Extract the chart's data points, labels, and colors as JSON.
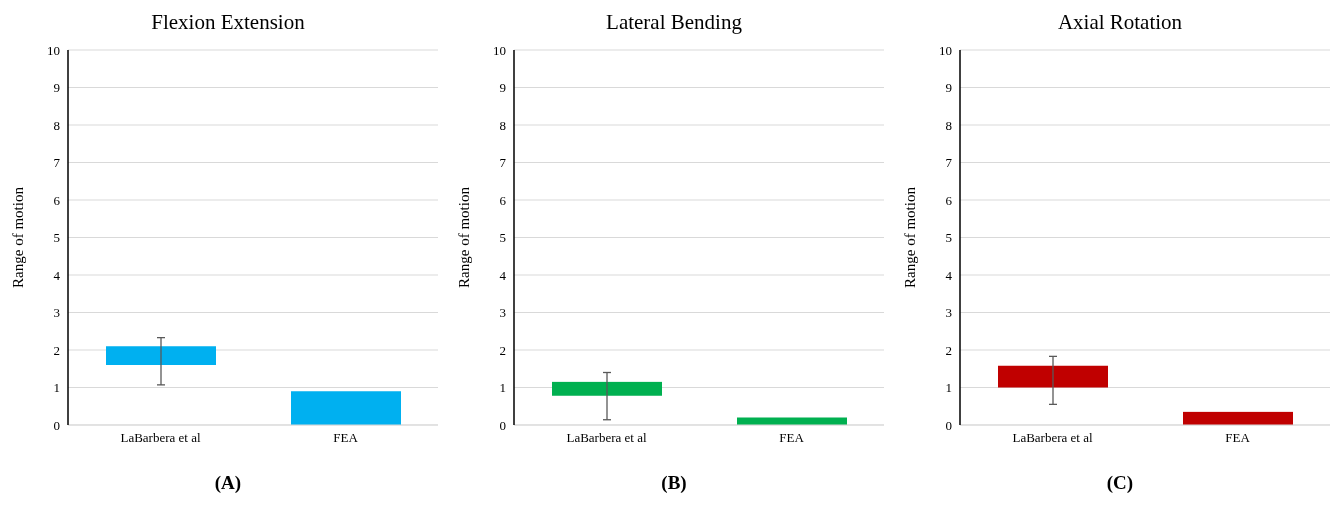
{
  "chart_data": [
    {
      "type": "bar",
      "title": "Flexion Extension",
      "ylabel": "Range of motion",
      "categories": [
        "LaBarbera et al",
        "FEA"
      ],
      "values": [
        0.5,
        0.9
      ],
      "base": [
        1.6,
        0
      ],
      "errors": [
        [
          1.07,
          2.33
        ],
        null
      ],
      "colors": [
        "#00b0f0",
        "#00b0f0"
      ],
      "ylim": [
        0,
        10
      ],
      "yticks": [
        0,
        1,
        2,
        3,
        4,
        5,
        6,
        7,
        8,
        9,
        10
      ],
      "grid": "y",
      "annotations": [
        "(A)"
      ]
    },
    {
      "type": "bar",
      "title": "Lateral Bending",
      "ylabel": "Range of motion",
      "categories": [
        "LaBarbera et al",
        "FEA"
      ],
      "values": [
        0.37,
        0.2
      ],
      "base": [
        0.78,
        0
      ],
      "errors": [
        [
          0.14,
          1.4
        ],
        null
      ],
      "colors": [
        "#00b050",
        "#00b050"
      ],
      "ylim": [
        0,
        10
      ],
      "yticks": [
        0,
        1,
        2,
        3,
        4,
        5,
        6,
        7,
        8,
        9,
        10
      ],
      "grid": "y",
      "annotations": [
        "(B)"
      ]
    },
    {
      "type": "bar",
      "title": "Axial Rotation",
      "ylabel": "Range of motion",
      "categories": [
        "LaBarbera et al",
        "FEA"
      ],
      "values": [
        0.58,
        0.35
      ],
      "base": [
        1.0,
        0
      ],
      "errors": [
        [
          0.55,
          1.83
        ],
        null
      ],
      "colors": [
        "#c00000",
        "#c00000"
      ],
      "ylim": [
        0,
        10
      ],
      "yticks": [
        0,
        1,
        2,
        3,
        4,
        5,
        6,
        7,
        8,
        9,
        10
      ],
      "grid": "y",
      "annotations": [
        "(C)"
      ]
    }
  ]
}
